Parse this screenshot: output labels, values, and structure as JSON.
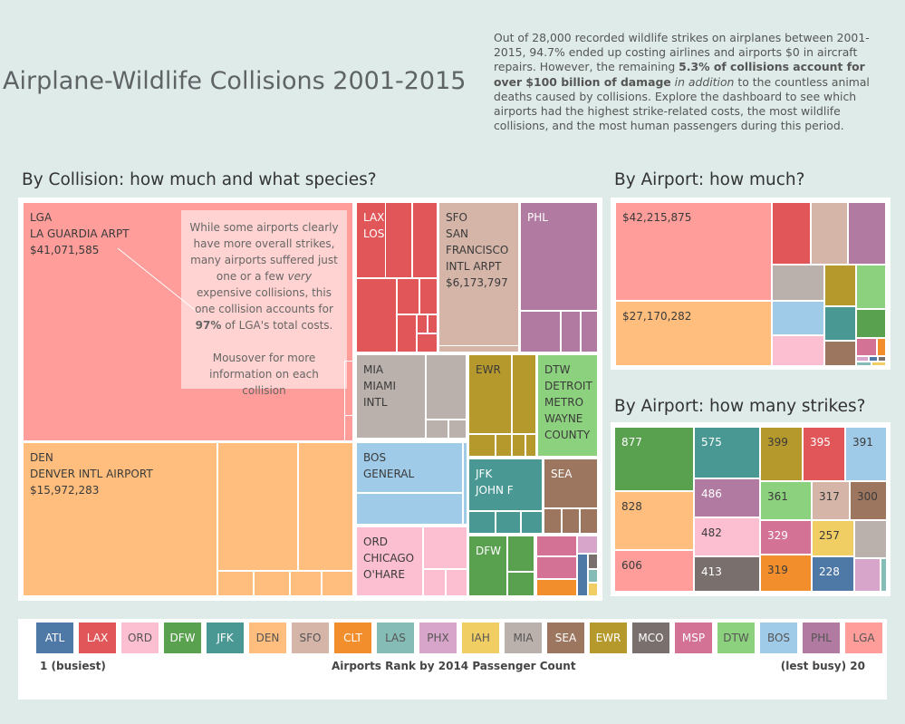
{
  "title": "Airplane-Wildlife Collisions 2001-2015",
  "intro": {
    "part1": "Out of 28,000 recorded wildlife strikes on airplanes between 2001-2015, 94.7%  ended up costing airlines and airports $0 in aircraft repairs. However, the remaining ",
    "bold1": "5.3% of collisions account for over $100 billion of damage",
    "italic1": "in addition",
    "part2": " to the countless animal deaths caused by collisions. Explore the dashboard to see which airports had the highest strike-related costs, the most wildlife collisions, and the most human passengers during this period."
  },
  "sections": {
    "collision": "By Collision: how much and what species?",
    "airport_cost": "By Airport: how much?",
    "airport_strikes": "By Airport: how many strikes?"
  },
  "colors": {
    "ATL": "#4e79a7",
    "LAX": "#e15759",
    "ORD": "#fcbfd2",
    "DFW": "#59a14f",
    "JFK": "#499894",
    "DEN": "#ffbe7d",
    "SFO": "#d4b5a8",
    "CLT": "#f28e2b",
    "LAS": "#86bcb6",
    "PHX": "#d7a5c9",
    "IAH": "#f1ce63",
    "MIA": "#bab0ac",
    "SEA": "#9d7660",
    "EWR": "#b6992d",
    "MCO": "#79706e",
    "MSP": "#d37295",
    "DTW": "#8cd17d",
    "BOS": "#a0cbe8",
    "PHL": "#b07aa1",
    "LGA": "#ff9d9a"
  },
  "collision_tiles": {
    "LGA": [
      "LGA",
      "LA GUARDIA ARPT",
      "$41,071,585"
    ],
    "DEN": [
      "DEN",
      "DENVER INTL AIRPORT",
      "$15,972,283"
    ],
    "LAX": [
      "LAX",
      "LOS"
    ],
    "SFO": [
      "SFO",
      "SAN",
      "FRANCISCO",
      "INTL ARPT",
      "$6,173,797"
    ],
    "PHL": [
      "PHL"
    ],
    "MIA": [
      "MIA",
      "MIAMI",
      "INTL"
    ],
    "EWR": [
      "EWR"
    ],
    "DTW": [
      "DTW",
      "DETROIT",
      "METRO",
      "WAYNE",
      "COUNTY"
    ],
    "BOS": [
      "BOS",
      "GENERAL"
    ],
    "JFK": [
      "JFK",
      "JOHN F"
    ],
    "SEA": [
      "SEA"
    ],
    "ORD": [
      "ORD",
      "CHICAGO",
      "O'HARE"
    ],
    "DFW": [
      "DFW"
    ]
  },
  "annotation": {
    "line1": "While some airports clearly have more overall strikes, many airports suffered just one or a few ",
    "italic": "very",
    "line2": " expensive collisions, this one collision accounts for ",
    "bold": "97%",
    "line3": " of LGA's total costs.",
    "line4": "Mousover for more information on each collision"
  },
  "airport_cost": {
    "LGA": "$42,215,875",
    "DEN": "$27,170,282"
  },
  "strike_counts": {
    "DFW": "877",
    "JFK": "575",
    "EWR": "399",
    "LAX": "395",
    "BOS": "391",
    "DEN": "828",
    "PHL": "486",
    "DTW": "361",
    "SFO": "317",
    "SEA": "300",
    "ORD": "482",
    "MSP": "329",
    "IAH": "257",
    "LGA": "606",
    "MCO": "413",
    "CLT": "319",
    "ATL": "228"
  },
  "legend": {
    "items": [
      "ATL",
      "LAX",
      "ORD",
      "DFW",
      "JFK",
      "DEN",
      "SFO",
      "CLT",
      "LAS",
      "PHX",
      "IAH",
      "MIA",
      "SEA",
      "EWR",
      "MCO",
      "MSP",
      "DTW",
      "BOS",
      "PHL",
      "LGA"
    ],
    "left_caption": "1 (busiest)",
    "center_caption": "Airports Rank by 2014 Passenger Count",
    "right_caption": "(lest busy) 20"
  }
}
